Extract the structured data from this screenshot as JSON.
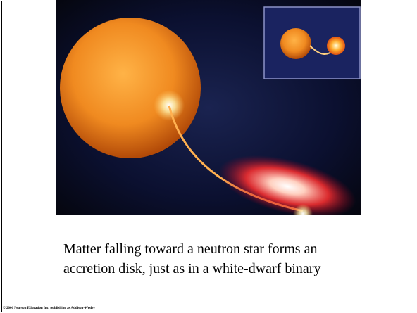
{
  "caption": {
    "lines": [
      "Matter falling toward a neutron star forms an",
      "accretion disk, just as in a white-dwarf binary"
    ]
  },
  "copyright": "© 2006 Pearson Education Inc. publishing as Addison-Wesley"
}
